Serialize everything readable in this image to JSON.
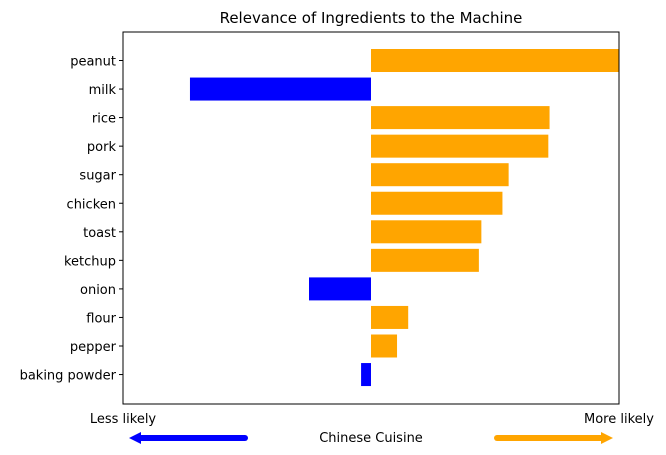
{
  "chart_data": {
    "type": "bar",
    "orientation": "horizontal",
    "title": "Relevance of Ingredients to the Machine",
    "xlabel": "Chinese Cuisine",
    "left_label": "Less likely",
    "right_label": "More likely",
    "categories": [
      "peanut",
      "milk",
      "rice",
      "pork",
      "sugar",
      "chicken",
      "toast",
      "ketchup",
      "onion",
      "flour",
      "pepper",
      "baking powder"
    ],
    "values": [
      1.0,
      -0.73,
      0.72,
      0.715,
      0.555,
      0.53,
      0.445,
      0.435,
      -0.25,
      0.15,
      0.105,
      -0.04
    ],
    "xlim": [
      -1.0,
      1.0
    ],
    "positive_color": "#FFA500",
    "negative_color": "#0000FF",
    "left_arrow_color": "#0000FF",
    "right_arrow_color": "#FFA500",
    "grid": false,
    "x_ticks_visible": false
  }
}
